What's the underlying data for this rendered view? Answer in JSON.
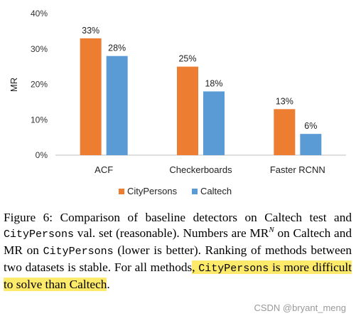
{
  "colors": {
    "citypersons": "#ED7D31",
    "caltech": "#5B9BD5",
    "highlight": "#fde96a"
  },
  "chart_data": {
    "type": "bar",
    "categories": [
      "ACF",
      "Checkerboards",
      "Faster RCNN"
    ],
    "series": [
      {
        "name": "CityPersons",
        "values": [
          33,
          25,
          13
        ],
        "labels": [
          "33%",
          "25%",
          "13%"
        ]
      },
      {
        "name": "Caltech",
        "values": [
          28,
          18,
          6
        ],
        "labels": [
          "28%",
          "18%",
          "6%"
        ]
      }
    ],
    "ylabel": "MR",
    "xlabel": "",
    "ylim": [
      0,
      40
    ],
    "yticks": [
      "0%",
      "10%",
      "20%",
      "30%",
      "40%"
    ],
    "grid": false,
    "legend": "bottom"
  },
  "caption": {
    "p1": "Figure 6: Comparison of baseline detectors on Caltech test and ",
    "mono1": "CityPersons",
    "p2": " val. set (reasonable). Numbers are MR",
    "sup": "N",
    "p3": " on Caltech and MR on ",
    "mono2": "CityPersons",
    "p4": " (lower is better). Ranking of methods between two datasets is stable. For all methods",
    "hl_pre": ", ",
    "hl_mono": "CityPersons",
    "hl_post": " is more difficult to solve than Caltech",
    "end": "."
  },
  "watermark": "CSDN @bryant_meng"
}
